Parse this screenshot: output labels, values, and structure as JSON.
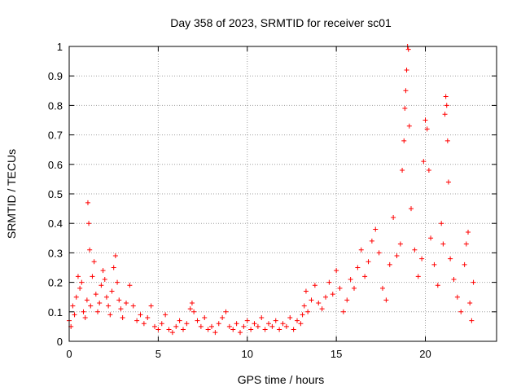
{
  "chart_data": {
    "type": "scatter",
    "title": "Day 358 of 2023, SRMTID for receiver sc01",
    "xlabel": "GPS time / hours",
    "ylabel": "SRMTID / TECUs",
    "xlim": [
      0,
      24
    ],
    "ylim": [
      0,
      1
    ],
    "xticks": [
      0,
      5,
      10,
      15,
      20
    ],
    "xtick_labels": [
      "0",
      "5",
      "10",
      "15",
      "20"
    ],
    "yticks": [
      0,
      0.1,
      0.2,
      0.3,
      0.4,
      0.5,
      0.6,
      0.7,
      0.8,
      0.9,
      1
    ],
    "ytick_labels": [
      "0",
      "0.1",
      "0.2",
      "0.3",
      "0.4",
      "0.5",
      "0.6",
      "0.7",
      "0.8",
      "0.9",
      "1"
    ],
    "grid": true,
    "marker": "plus",
    "color": "#ff0000",
    "series": [
      {
        "name": "sc01",
        "points": [
          [
            0.0,
            0.07
          ],
          [
            0.1,
            0.05
          ],
          [
            0.2,
            0.12
          ],
          [
            0.3,
            0.09
          ],
          [
            0.4,
            0.15
          ],
          [
            0.5,
            0.22
          ],
          [
            0.6,
            0.18
          ],
          [
            0.7,
            0.2
          ],
          [
            0.8,
            0.1
          ],
          [
            0.9,
            0.08
          ],
          [
            1.0,
            0.14
          ],
          [
            1.05,
            0.47
          ],
          [
            1.1,
            0.4
          ],
          [
            1.15,
            0.31
          ],
          [
            1.2,
            0.12
          ],
          [
            1.3,
            0.22
          ],
          [
            1.4,
            0.27
          ],
          [
            1.5,
            0.16
          ],
          [
            1.6,
            0.1
          ],
          [
            1.7,
            0.13
          ],
          [
            1.8,
            0.19
          ],
          [
            1.9,
            0.24
          ],
          [
            2.0,
            0.21
          ],
          [
            2.1,
            0.15
          ],
          [
            2.2,
            0.12
          ],
          [
            2.3,
            0.09
          ],
          [
            2.4,
            0.17
          ],
          [
            2.5,
            0.25
          ],
          [
            2.6,
            0.29
          ],
          [
            2.7,
            0.2
          ],
          [
            2.8,
            0.14
          ],
          [
            2.9,
            0.11
          ],
          [
            3.0,
            0.08
          ],
          [
            3.2,
            0.13
          ],
          [
            3.4,
            0.19
          ],
          [
            3.6,
            0.12
          ],
          [
            3.8,
            0.07
          ],
          [
            4.0,
            0.09
          ],
          [
            4.2,
            0.06
          ],
          [
            4.4,
            0.08
          ],
          [
            4.6,
            0.12
          ],
          [
            4.8,
            0.05
          ],
          [
            5.0,
            0.04
          ],
          [
            5.2,
            0.06
          ],
          [
            5.4,
            0.09
          ],
          [
            5.6,
            0.04
          ],
          [
            5.8,
            0.03
          ],
          [
            6.0,
            0.05
          ],
          [
            6.2,
            0.07
          ],
          [
            6.4,
            0.04
          ],
          [
            6.6,
            0.06
          ],
          [
            6.8,
            0.11
          ],
          [
            6.9,
            0.13
          ],
          [
            7.0,
            0.1
          ],
          [
            7.2,
            0.07
          ],
          [
            7.4,
            0.05
          ],
          [
            7.6,
            0.08
          ],
          [
            7.8,
            0.04
          ],
          [
            8.0,
            0.05
          ],
          [
            8.2,
            0.03
          ],
          [
            8.4,
            0.06
          ],
          [
            8.6,
            0.08
          ],
          [
            8.8,
            0.1
          ],
          [
            9.0,
            0.05
          ],
          [
            9.2,
            0.04
          ],
          [
            9.4,
            0.06
          ],
          [
            9.6,
            0.03
          ],
          [
            9.8,
            0.05
          ],
          [
            10.0,
            0.07
          ],
          [
            10.2,
            0.04
          ],
          [
            10.4,
            0.06
          ],
          [
            10.6,
            0.05
          ],
          [
            10.8,
            0.08
          ],
          [
            11.0,
            0.04
          ],
          [
            11.2,
            0.06
          ],
          [
            11.4,
            0.05
          ],
          [
            11.6,
            0.07
          ],
          [
            11.8,
            0.04
          ],
          [
            12.0,
            0.06
          ],
          [
            12.2,
            0.05
          ],
          [
            12.4,
            0.08
          ],
          [
            12.6,
            0.04
          ],
          [
            12.8,
            0.07
          ],
          [
            13.0,
            0.06
          ],
          [
            13.1,
            0.09
          ],
          [
            13.2,
            0.12
          ],
          [
            13.3,
            0.17
          ],
          [
            13.4,
            0.1
          ],
          [
            13.6,
            0.14
          ],
          [
            13.8,
            0.19
          ],
          [
            14.0,
            0.13
          ],
          [
            14.2,
            0.11
          ],
          [
            14.4,
            0.15
          ],
          [
            14.6,
            0.2
          ],
          [
            14.8,
            0.16
          ],
          [
            15.0,
            0.24
          ],
          [
            15.2,
            0.18
          ],
          [
            15.4,
            0.1
          ],
          [
            15.6,
            0.14
          ],
          [
            15.8,
            0.21
          ],
          [
            16.0,
            0.18
          ],
          [
            16.2,
            0.25
          ],
          [
            16.4,
            0.31
          ],
          [
            16.6,
            0.22
          ],
          [
            16.8,
            0.27
          ],
          [
            17.0,
            0.34
          ],
          [
            17.2,
            0.38
          ],
          [
            17.4,
            0.3
          ],
          [
            17.6,
            0.18
          ],
          [
            17.8,
            0.14
          ],
          [
            18.0,
            0.26
          ],
          [
            18.2,
            0.42
          ],
          [
            18.4,
            0.29
          ],
          [
            18.6,
            0.33
          ],
          [
            18.7,
            0.58
          ],
          [
            18.8,
            0.68
          ],
          [
            18.85,
            0.79
          ],
          [
            18.9,
            0.85
          ],
          [
            18.95,
            0.92
          ],
          [
            19.0,
            1.0
          ],
          [
            19.05,
            0.99
          ],
          [
            19.1,
            0.73
          ],
          [
            19.2,
            0.45
          ],
          [
            19.4,
            0.31
          ],
          [
            19.6,
            0.22
          ],
          [
            19.8,
            0.28
          ],
          [
            19.9,
            0.61
          ],
          [
            20.0,
            0.75
          ],
          [
            20.1,
            0.72
          ],
          [
            20.2,
            0.58
          ],
          [
            20.3,
            0.35
          ],
          [
            20.5,
            0.26
          ],
          [
            20.7,
            0.19
          ],
          [
            20.9,
            0.4
          ],
          [
            21.0,
            0.33
          ],
          [
            21.1,
            0.77
          ],
          [
            21.15,
            0.83
          ],
          [
            21.2,
            0.8
          ],
          [
            21.25,
            0.68
          ],
          [
            21.3,
            0.54
          ],
          [
            21.4,
            0.28
          ],
          [
            21.6,
            0.21
          ],
          [
            21.8,
            0.15
          ],
          [
            22.0,
            0.1
          ],
          [
            22.2,
            0.26
          ],
          [
            22.3,
            0.33
          ],
          [
            22.4,
            0.37
          ],
          [
            22.5,
            0.13
          ],
          [
            22.6,
            0.07
          ],
          [
            22.7,
            0.2
          ]
        ]
      }
    ]
  }
}
